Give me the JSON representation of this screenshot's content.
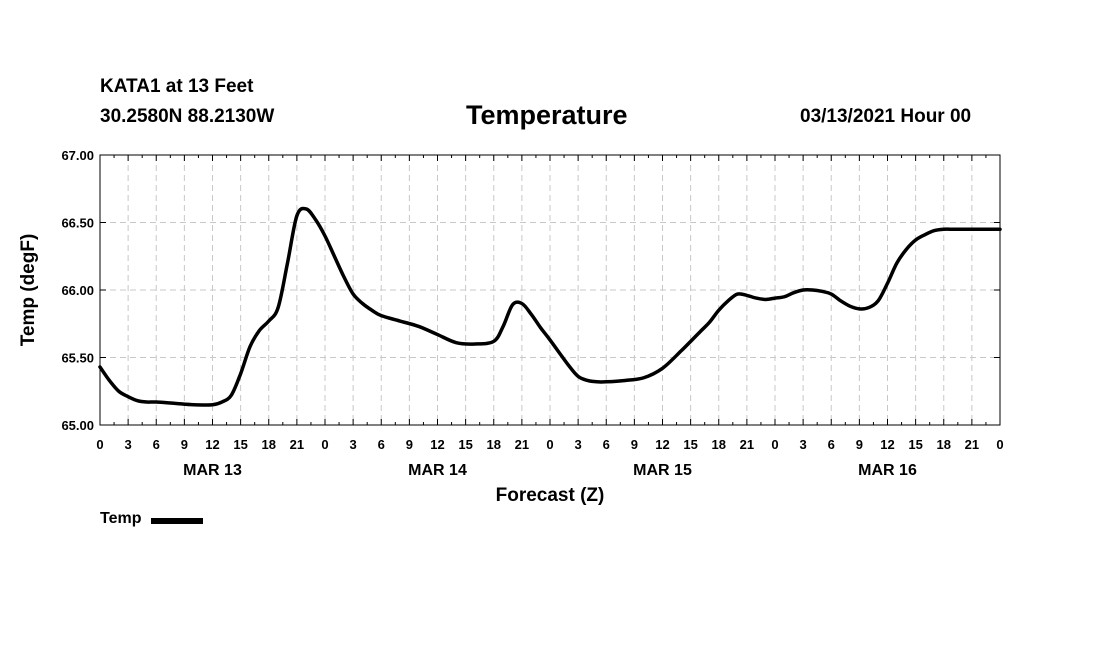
{
  "header": {
    "station": "KATA1 at 13 Feet",
    "coords": "30.2580N 88.2130W",
    "title": "Temperature",
    "datetime": "03/13/2021 Hour 00"
  },
  "chart_data": {
    "type": "line",
    "title": "Temperature",
    "xlabel": "Forecast (Z)",
    "ylabel": "Temp (degF)",
    "ylim": [
      65.0,
      67.0
    ],
    "xlim": [
      0,
      96
    ],
    "y_ticks": [
      "65.00",
      "65.50",
      "66.00",
      "66.50",
      "67.00"
    ],
    "y_tick_values": [
      65.0,
      65.5,
      66.0,
      66.5,
      67.0
    ],
    "x_tick_hours": [
      0,
      3,
      6,
      9,
      12,
      15,
      18,
      21,
      24,
      27,
      30,
      33,
      36,
      39,
      42,
      45,
      48,
      51,
      54,
      57,
      60,
      63,
      66,
      69,
      72,
      75,
      78,
      81,
      84,
      87,
      90,
      93,
      96
    ],
    "x_tick_labels": [
      "0",
      "3",
      "6",
      "9",
      "12",
      "15",
      "18",
      "21",
      "0",
      "3",
      "6",
      "9",
      "12",
      "15",
      "18",
      "21",
      "0",
      "3",
      "6",
      "9",
      "12",
      "15",
      "18",
      "21",
      "0",
      "3",
      "6",
      "9",
      "12",
      "15",
      "18",
      "21",
      "0"
    ],
    "day_labels": [
      {
        "text": "MAR 13",
        "hour": 12
      },
      {
        "text": "MAR 14",
        "hour": 36
      },
      {
        "text": "MAR 15",
        "hour": 60
      },
      {
        "text": "MAR 16",
        "hour": 84
      }
    ],
    "grid": true,
    "legend_position": "bottom-left",
    "series": [
      {
        "name": "Temp",
        "color": "#000000",
        "x": [
          0,
          1,
          2,
          3,
          4,
          5,
          6,
          8,
          10,
          12,
          13,
          14,
          15,
          16,
          17,
          18,
          19,
          20,
          21,
          22,
          23,
          24,
          25,
          26,
          27,
          28,
          29,
          30,
          32,
          34,
          36,
          38,
          40,
          42,
          43,
          44,
          45,
          46,
          47,
          48,
          50,
          51,
          52,
          53,
          54,
          56,
          58,
          60,
          62,
          64,
          65,
          66,
          67,
          68,
          69,
          70,
          71,
          72,
          73,
          74,
          75,
          76,
          77,
          78,
          79,
          80,
          81,
          82,
          83,
          84,
          85,
          86,
          87,
          88,
          89,
          90,
          91,
          92,
          93,
          94,
          95,
          96
        ],
        "values": [
          65.43,
          65.33,
          65.25,
          65.21,
          65.18,
          65.17,
          65.17,
          65.16,
          65.15,
          65.15,
          65.17,
          65.22,
          65.38,
          65.58,
          65.7,
          65.77,
          65.87,
          66.2,
          66.55,
          66.6,
          66.52,
          66.4,
          66.25,
          66.1,
          65.97,
          65.9,
          65.85,
          65.81,
          65.77,
          65.73,
          65.67,
          65.61,
          65.6,
          65.62,
          65.73,
          65.89,
          65.9,
          65.82,
          65.72,
          65.63,
          65.44,
          65.36,
          65.33,
          65.32,
          65.32,
          65.33,
          65.35,
          65.42,
          65.55,
          65.69,
          65.76,
          65.85,
          65.92,
          65.97,
          65.96,
          65.94,
          65.93,
          65.94,
          65.95,
          65.98,
          66.0,
          66.0,
          65.99,
          65.97,
          65.92,
          65.88,
          65.86,
          65.87,
          65.92,
          66.05,
          66.2,
          66.3,
          66.37,
          66.41,
          66.44,
          66.45,
          66.45,
          66.45,
          66.45,
          66.45,
          66.45,
          66.45
        ]
      }
    ]
  },
  "legend": {
    "label": "Temp"
  }
}
